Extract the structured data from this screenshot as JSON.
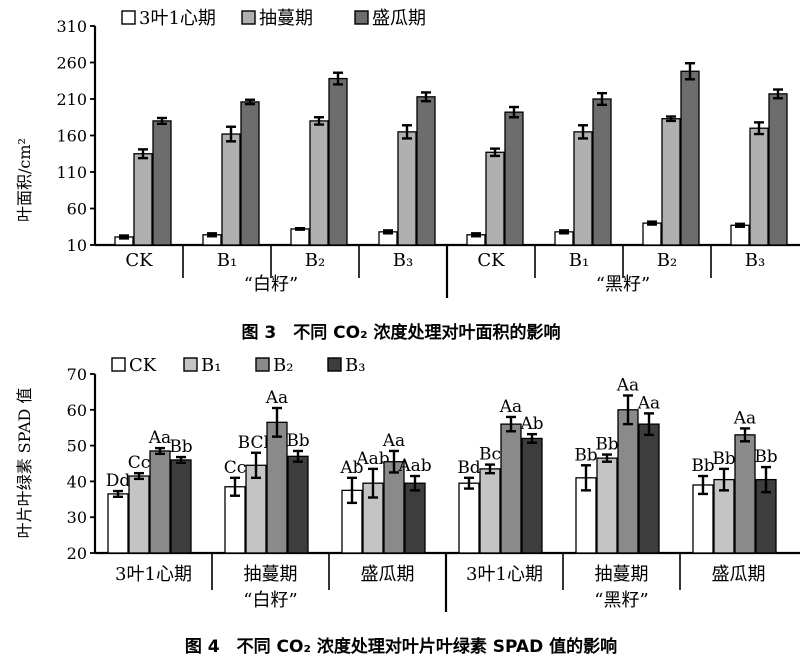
{
  "chart_data": [
    {
      "type": "bar",
      "ylabel": "叶面积/cm²",
      "ylim": [
        10,
        310
      ],
      "yticks": [
        10,
        60,
        110,
        160,
        210,
        260,
        310
      ],
      "groups": [
        "“白籽”",
        "“黑籽”"
      ],
      "categories": [
        "CK",
        "B₁",
        "B₂",
        "B₃",
        "CK",
        "B₁",
        "B₂",
        "B₃"
      ],
      "series": [
        {
          "name": "3叶1心期",
          "color": "#ffffff",
          "values": [
            21,
            24,
            32,
            28,
            24,
            28,
            40,
            37
          ],
          "errors": [
            2,
            2,
            1,
            2,
            2,
            2,
            2,
            2
          ]
        },
        {
          "name": "抽蔓期",
          "color": "#b0b0b0",
          "values": [
            135,
            162,
            180,
            165,
            137,
            165,
            183,
            170
          ],
          "errors": [
            6,
            10,
            5,
            9,
            5,
            9,
            3,
            8
          ]
        },
        {
          "name": "盛瓜期",
          "color": "#6d6d6d",
          "values": [
            180,
            206,
            238,
            213,
            192,
            210,
            248,
            217
          ],
          "errors": [
            4,
            3,
            8,
            6,
            7,
            8,
            11,
            6
          ]
        }
      ],
      "caption": "图 3　不同 CO₂ 浓度处理对叶面积的影响"
    },
    {
      "type": "bar",
      "ylabel": "叶片叶绿素 SPAD 值",
      "ylim": [
        20,
        70
      ],
      "yticks": [
        20,
        30,
        40,
        50,
        60,
        70
      ],
      "groups": [
        "“白籽”",
        "“黑籽”"
      ],
      "categories": [
        "3叶1心期",
        "抽蔓期",
        "盛瓜期",
        "3叶1心期",
        "抽蔓期",
        "盛瓜期"
      ],
      "series": [
        {
          "name": "CK",
          "color": "#ffffff",
          "values": [
            36.5,
            38.5,
            37.5,
            39.5,
            41,
            39
          ],
          "errors": [
            0.8,
            2.5,
            3.5,
            1.5,
            3.5,
            2.5
          ],
          "labels": [
            "Dd",
            "Cc",
            "Ab",
            "Bd",
            "Bb",
            "Bb"
          ]
        },
        {
          "name": "B₁",
          "color": "#c4c4c4",
          "values": [
            41.5,
            44.5,
            39.5,
            43.5,
            46.5,
            40.5
          ],
          "errors": [
            0.8,
            3.5,
            4,
            1.2,
            1,
            3
          ],
          "labels": [
            "Cc",
            "BCb",
            "Aab",
            "Bc",
            "Bb",
            "Bb"
          ]
        },
        {
          "name": "B₂",
          "color": "#8a8a8a",
          "values": [
            48.5,
            56.5,
            45.5,
            56,
            60,
            53
          ],
          "errors": [
            0.8,
            4,
            3,
            2,
            4,
            1.8
          ],
          "labels": [
            "Aa",
            "Aa",
            "Aa",
            "Aa",
            "Aa",
            "Aa"
          ]
        },
        {
          "name": "B₃",
          "color": "#3d3d3d",
          "values": [
            46,
            47,
            39.5,
            52,
            56,
            40.5
          ],
          "errors": [
            0.8,
            1.5,
            2,
            1.2,
            3,
            3.5
          ],
          "labels": [
            "Bb",
            "Bb",
            "Aab",
            "Ab",
            "Aa",
            "Bb"
          ]
        }
      ],
      "caption": "图 4　不同 CO₂ 浓度处理对叶片叶绿素 SPAD 值的影响"
    }
  ]
}
